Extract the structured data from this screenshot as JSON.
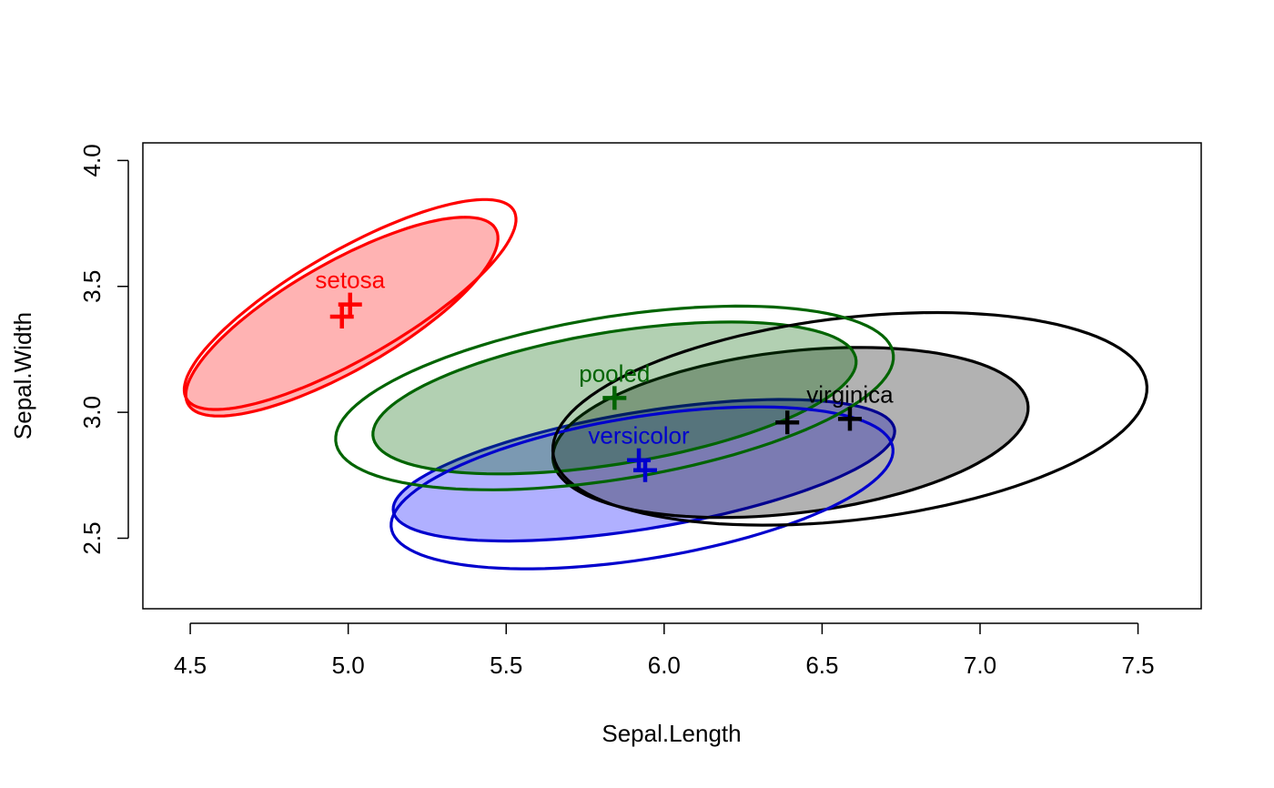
{
  "chart_data": {
    "type": "scatter",
    "xlabel": "Sepal.Length",
    "ylabel": "Sepal.Width",
    "xlim": [
      4.35,
      7.7
    ],
    "ylim": [
      2.22,
      4.07
    ],
    "xticks": [
      4.5,
      5.0,
      5.5,
      6.0,
      6.5,
      7.0,
      7.5
    ],
    "xtick_labels": [
      "4.5",
      "5.0",
      "5.5",
      "6.0",
      "6.5",
      "7.0",
      "7.5"
    ],
    "yticks": [
      2.5,
      3.0,
      3.5,
      4.0
    ],
    "ytick_labels": [
      "2.5",
      "3.0",
      "3.5",
      "4.0"
    ],
    "groups": [
      {
        "label": "setosa",
        "color": "#ff0000",
        "fill": "#ffb3b3",
        "centers": [
          [
            5.006,
            3.428
          ],
          [
            4.98,
            3.38
          ]
        ],
        "filled_ellipse": {
          "cx": 4.98,
          "cy": 3.38,
          "angle_deg": 37,
          "rx": 0.6,
          "ry": 0.2
        },
        "open_ellipse": {
          "cx": 5.006,
          "cy": 3.428,
          "angle_deg": 37,
          "rx": 0.64,
          "ry": 0.2
        }
      },
      {
        "label": "versicolor",
        "color": "#0000cd",
        "fill": "#0000ff",
        "fill_opacity": 0.31,
        "centers": [
          [
            5.92,
            2.81
          ],
          [
            5.94,
            2.77
          ]
        ],
        "filled_ellipse": {
          "cx": 5.936,
          "cy": 2.77,
          "angle_deg": 12,
          "rx": 0.81,
          "ry": 0.23
        },
        "open_ellipse": {
          "cx": 5.93,
          "cy": 2.7,
          "angle_deg": 12,
          "rx": 0.81,
          "ry": 0.28
        }
      },
      {
        "label": "virginica",
        "color": "#000000",
        "fill": "#000000",
        "fill_opacity": 0.3,
        "centers": [
          [
            6.588,
            2.974
          ],
          [
            6.39,
            2.96
          ]
        ],
        "filled_ellipse": {
          "cx": 6.4,
          "cy": 2.92,
          "angle_deg": 9,
          "rx": 0.76,
          "ry": 0.32
        },
        "open_ellipse": {
          "cx": 6.588,
          "cy": 2.974,
          "angle_deg": 9,
          "rx": 0.95,
          "ry": 0.4
        }
      },
      {
        "label": "pooled",
        "color": "#006400",
        "fill": "#006400",
        "fill_opacity": 0.3,
        "centers": [
          [
            5.843,
            3.057
          ]
        ],
        "filled_ellipse": {
          "cx": 5.843,
          "cy": 3.057,
          "angle_deg": 12,
          "rx": 0.78,
          "ry": 0.26
        },
        "open_ellipse": {
          "cx": 5.843,
          "cy": 3.057,
          "angle_deg": 12,
          "rx": 0.9,
          "ry": 0.32
        }
      }
    ]
  }
}
